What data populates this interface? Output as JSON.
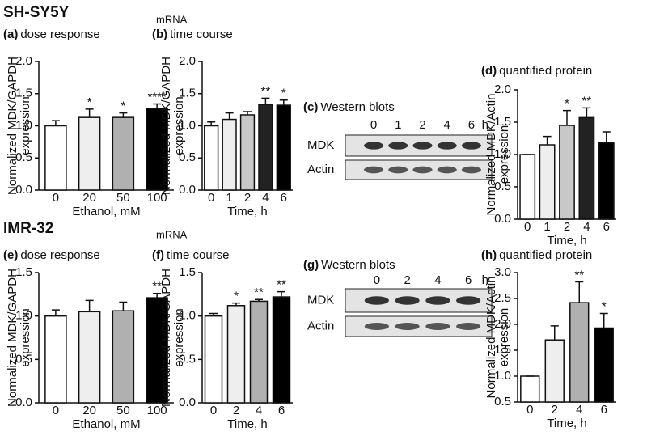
{
  "sections": [
    "SH-SY5Y",
    "IMR-32"
  ],
  "mrna_labels": [
    "mRNA",
    "mRNA"
  ],
  "blots": [
    {
      "panel": "(c)",
      "title": "Western blots",
      "lanes": [
        "0",
        "1",
        "2",
        "4",
        "6"
      ],
      "unit": "h",
      "rows": [
        "MDK",
        "Actin"
      ]
    },
    {
      "panel": "(g)",
      "title": "Western blots",
      "lanes": [
        "0",
        "2",
        "4",
        "6"
      ],
      "unit": "h",
      "rows": [
        "MDK",
        "Actin"
      ]
    }
  ],
  "chart_data": [
    {
      "type": "bar",
      "panel": "(a)",
      "title": "dose response",
      "ylabel": [
        "Normalized MDK/GAPDH",
        "expression"
      ],
      "xlabel": "Ethanol, mM",
      "categories": [
        "0",
        "20",
        "50",
        "100"
      ],
      "values": [
        1.0,
        1.13,
        1.13,
        1.27
      ],
      "errors": [
        0.08,
        0.13,
        0.07,
        0.07
      ],
      "significance": [
        null,
        "*",
        "*",
        "****"
      ],
      "colors": [
        "#ffffff",
        "#eeeeee",
        "#b0b0b0",
        "#000000"
      ],
      "ylim": [
        0,
        2
      ],
      "yticks": [
        {
          "value": 0,
          "label": "0.0"
        },
        0.5,
        {
          "value": 1,
          "label": "1.0"
        },
        1.5,
        {
          "value": 2,
          "label": "2.0"
        }
      ]
    },
    {
      "type": "bar",
      "panel": "(b)",
      "title": "time course",
      "ylabel": [
        "Normalized MDK/GAPDH",
        "expression"
      ],
      "xlabel": "Time, h",
      "categories": [
        "0",
        "1",
        "2",
        "4",
        "6"
      ],
      "values": [
        1.0,
        1.1,
        1.17,
        1.33,
        1.32
      ],
      "errors": [
        0.06,
        0.1,
        0.05,
        0.1,
        0.08
      ],
      "significance": [
        null,
        null,
        null,
        "**",
        "*"
      ],
      "colors": [
        "#ffffff",
        "#eeeeee",
        "#c8c8c8",
        "#222222",
        "#000000"
      ],
      "ylim": [
        0,
        2
      ],
      "yticks": [
        {
          "value": 0,
          "label": "0.0"
        },
        0.5,
        {
          "value": 1,
          "label": "1.0"
        },
        1.5,
        {
          "value": 2,
          "label": "2.0"
        }
      ]
    },
    {
      "type": "bar",
      "panel": "(d)",
      "title": "quantified protein",
      "ylabel": [
        "Normalized MDK/Actin",
        "expression"
      ],
      "xlabel": "Time, h",
      "categories": [
        "0",
        "1",
        "2",
        "4",
        "6"
      ],
      "values": [
        1.0,
        1.15,
        1.45,
        1.57,
        1.18
      ],
      "errors": [
        0,
        0.13,
        0.23,
        0.15,
        0.17
      ],
      "significance": [
        null,
        null,
        "*",
        "**",
        null
      ],
      "colors": [
        "#ffffff",
        "#eeeeee",
        "#c8c8c8",
        "#222222",
        "#000000"
      ],
      "ylim": [
        0,
        2
      ],
      "yticks": [
        {
          "value": 0,
          "label": "0.0"
        },
        0.5,
        {
          "value": 1,
          "label": "1.0"
        },
        1.5,
        {
          "value": 2,
          "label": "2.0"
        }
      ]
    },
    {
      "type": "bar",
      "panel": "(e)",
      "title": "dose response",
      "ylabel": [
        "Normalized MDK/GAPDH",
        "expression"
      ],
      "xlabel": "Ethanol, mM",
      "categories": [
        "0",
        "20",
        "50",
        "100"
      ],
      "values": [
        1.0,
        1.05,
        1.06,
        1.21
      ],
      "errors": [
        0.07,
        0.13,
        0.1,
        0.05
      ],
      "significance": [
        null,
        null,
        null,
        "**"
      ],
      "colors": [
        "#ffffff",
        "#eeeeee",
        "#b0b0b0",
        "#000000"
      ],
      "ylim": [
        0,
        1.5
      ],
      "yticks": [
        {
          "value": 0,
          "label": "0.0"
        },
        0.5,
        {
          "value": 1,
          "label": "1.0"
        },
        1.5
      ]
    },
    {
      "type": "bar",
      "panel": "(f)",
      "title": "time course",
      "ylabel": [
        "Normalized MDK/GAPDH",
        "expression"
      ],
      "xlabel": "Time, h",
      "categories": [
        "0",
        "2",
        "4",
        "6"
      ],
      "values": [
        1.0,
        1.12,
        1.17,
        1.22
      ],
      "errors": [
        0.03,
        0.03,
        0.02,
        0.06
      ],
      "significance": [
        null,
        "*",
        "**",
        "**"
      ],
      "colors": [
        "#ffffff",
        "#eeeeee",
        "#b0b0b0",
        "#000000"
      ],
      "ylim": [
        0,
        1.5
      ],
      "yticks": [
        {
          "value": 0,
          "label": "0.0"
        },
        0.5,
        {
          "value": 1,
          "label": "1.0"
        },
        1.5
      ]
    },
    {
      "type": "bar",
      "panel": "(h)",
      "title": "quantified protein",
      "ylabel": [
        "Normalized MDK/Actin",
        "expression"
      ],
      "xlabel": "Time, h",
      "categories": [
        "0",
        "2",
        "4",
        "6"
      ],
      "values": [
        1.0,
        1.7,
        2.42,
        1.93
      ],
      "errors": [
        0,
        0.27,
        0.4,
        0.28
      ],
      "significance": [
        null,
        null,
        "**",
        "*"
      ],
      "colors": [
        "#ffffff",
        "#eeeeee",
        "#b0b0b0",
        "#000000"
      ],
      "ylim": [
        0.5,
        3
      ],
      "yticks": [
        0.5,
        {
          "value": 1,
          "label": "1.0"
        },
        1.5,
        {
          "value": 2,
          "label": "2.0"
        },
        2.5,
        {
          "value": 3,
          "label": "3.0"
        }
      ]
    }
  ]
}
